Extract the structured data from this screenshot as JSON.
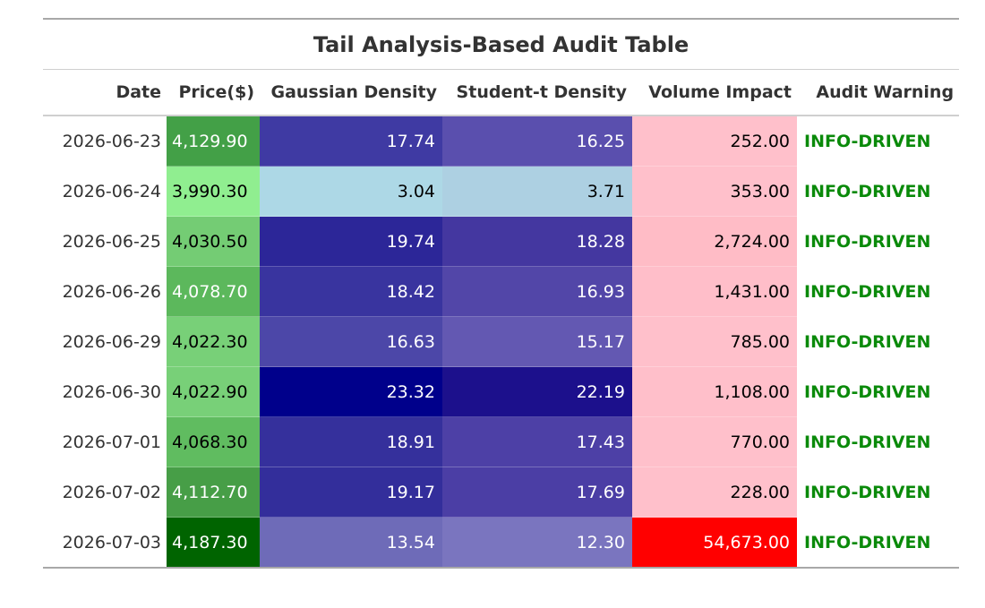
{
  "chart_data": {
    "type": "table",
    "title": "Tail Analysis-Based Audit Table",
    "columns": [
      "Date",
      "Price($)",
      "Gaussian Density",
      "Student-t Density",
      "Volume Impact",
      "Audit Warning"
    ],
    "rows": [
      {
        "date": "2026-06-23",
        "price": "4,129.90",
        "gaussian": "17.74",
        "student": "16.25",
        "volume": "252.00",
        "warning": "INFO-DRIVEN",
        "price_bg": "#43a047",
        "gauss_bg": "#3f3aa3",
        "stud_bg": "#5a4fae",
        "vol_bg": "#ffc0cb"
      },
      {
        "date": "2026-06-24",
        "price": "3,990.30",
        "gaussian": "3.04",
        "student": "3.71",
        "volume": "353.00",
        "warning": "INFO-DRIVEN",
        "price_bg": "#90ee90",
        "gauss_bg": "#add8e6",
        "stud_bg": "#add0e2",
        "vol_bg": "#ffc0cb"
      },
      {
        "date": "2026-06-25",
        "price": "4,030.50",
        "gaussian": "19.74",
        "student": "18.28",
        "volume": "2,724.00",
        "warning": "INFO-DRIVEN",
        "price_bg": "#74cc74",
        "gauss_bg": "#2c2698",
        "stud_bg": "#4437a0",
        "vol_bg": "#ffbcc6"
      },
      {
        "date": "2026-06-26",
        "price": "4,078.70",
        "gaussian": "18.42",
        "student": "16.93",
        "volume": "1,431.00",
        "warning": "INFO-DRIVEN",
        "price_bg": "#5cb85c",
        "gauss_bg": "#39349f",
        "stud_bg": "#5246a8",
        "vol_bg": "#ffbec9"
      },
      {
        "date": "2026-06-29",
        "price": "4,022.30",
        "gaussian": "16.63",
        "student": "15.17",
        "volume": "785.00",
        "warning": "INFO-DRIVEN",
        "price_bg": "#78d078",
        "gauss_bg": "#4c47a8",
        "stud_bg": "#6358b2",
        "vol_bg": "#ffc0cb"
      },
      {
        "date": "2026-06-30",
        "price": "4,022.90",
        "gaussian": "23.32",
        "student": "22.19",
        "volume": "1,108.00",
        "warning": "INFO-DRIVEN",
        "price_bg": "#78d078",
        "gauss_bg": "#00008b",
        "stud_bg": "#1c108c",
        "vol_bg": "#ffbfca"
      },
      {
        "date": "2026-07-01",
        "price": "4,068.30",
        "gaussian": "18.91",
        "student": "17.43",
        "volume": "770.00",
        "warning": "INFO-DRIVEN",
        "price_bg": "#60bc60",
        "gauss_bg": "#35309c",
        "stud_bg": "#4d40a6",
        "vol_bg": "#ffc0cb"
      },
      {
        "date": "2026-07-02",
        "price": "4,112.70",
        "gaussian": "19.17",
        "student": "17.69",
        "volume": "228.00",
        "warning": "INFO-DRIVEN",
        "price_bg": "#479e47",
        "gauss_bg": "#332e9b",
        "stud_bg": "#4b3ea5",
        "vol_bg": "#ffc0cb"
      },
      {
        "date": "2026-07-03",
        "price": "4,187.30",
        "gaussian": "13.54",
        "student": "12.30",
        "volume": "54,673.00",
        "warning": "INFO-DRIVEN",
        "price_bg": "#006400",
        "gauss_bg": "#6e6bb8",
        "stud_bg": "#7a75bf",
        "vol_bg": "#ff0000"
      }
    ],
    "colors": {
      "warning_text": "#0a8a0a",
      "light_text": "#000000",
      "dark_text": "#ffffff"
    }
  }
}
